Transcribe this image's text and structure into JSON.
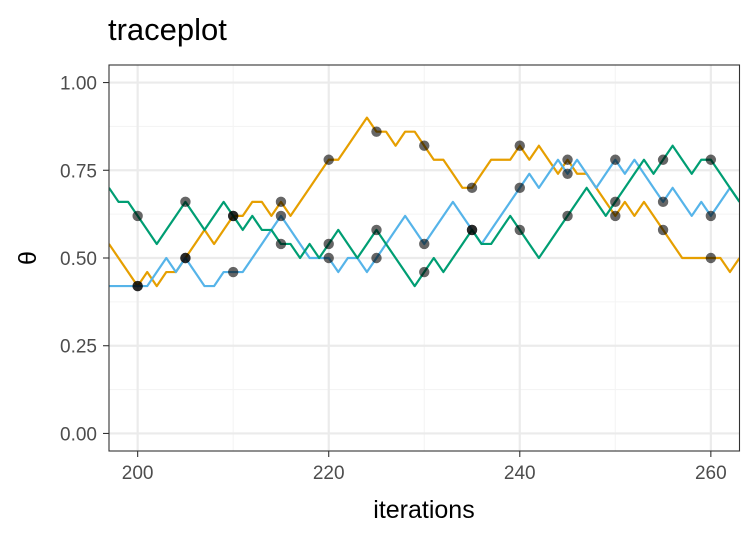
{
  "chart_data": {
    "type": "line",
    "title": "traceplot",
    "xlabel": "iterations",
    "ylabel": "θ",
    "xlim": [
      197,
      263
    ],
    "ylim": [
      -0.05,
      1.05
    ],
    "x_ticks": [
      200,
      220,
      240,
      260
    ],
    "y_ticks": [
      0.0,
      0.25,
      0.5,
      0.75,
      1.0
    ],
    "x_tick_labels": [
      "200",
      "220",
      "240",
      "260"
    ],
    "y_tick_labels": [
      "0.00",
      "0.25",
      "0.50",
      "0.75",
      "1.00"
    ],
    "grid": true,
    "x_start": 197,
    "series": [
      {
        "color": "#E69F00",
        "values": [
          0.54,
          0.5,
          0.46,
          0.42,
          0.46,
          0.42,
          0.46,
          0.46,
          0.5,
          0.54,
          0.58,
          0.54,
          0.58,
          0.62,
          0.62,
          0.66,
          0.66,
          0.62,
          0.66,
          0.62,
          0.66,
          0.7,
          0.74,
          0.78,
          0.78,
          0.82,
          0.86,
          0.9,
          0.86,
          0.86,
          0.82,
          0.86,
          0.86,
          0.82,
          0.78,
          0.78,
          0.74,
          0.7,
          0.7,
          0.74,
          0.78,
          0.78,
          0.78,
          0.82,
          0.78,
          0.82,
          0.78,
          0.74,
          0.78,
          0.74,
          0.74,
          0.7,
          0.66,
          0.62,
          0.66,
          0.62,
          0.66,
          0.62,
          0.58,
          0.54,
          0.5,
          0.5,
          0.5,
          0.5,
          0.5,
          0.46,
          0.5
        ]
      },
      {
        "color": "#56B4E9",
        "values": [
          0.42,
          0.42,
          0.42,
          0.42,
          0.42,
          0.46,
          0.5,
          0.46,
          0.5,
          0.46,
          0.42,
          0.42,
          0.46,
          0.46,
          0.46,
          0.5,
          0.54,
          0.58,
          0.62,
          0.58,
          0.54,
          0.5,
          0.5,
          0.5,
          0.46,
          0.5,
          0.5,
          0.46,
          0.5,
          0.54,
          0.58,
          0.62,
          0.58,
          0.54,
          0.58,
          0.62,
          0.66,
          0.62,
          0.58,
          0.54,
          0.58,
          0.62,
          0.66,
          0.7,
          0.74,
          0.7,
          0.74,
          0.78,
          0.74,
          0.78,
          0.74,
          0.7,
          0.74,
          0.78,
          0.74,
          0.78,
          0.74,
          0.7,
          0.66,
          0.7,
          0.66,
          0.62,
          0.66,
          0.62,
          0.66,
          0.7,
          0.66
        ]
      },
      {
        "color": "#009E73",
        "values": [
          0.7,
          0.66,
          0.66,
          0.62,
          0.58,
          0.54,
          0.58,
          0.62,
          0.66,
          0.62,
          0.58,
          0.62,
          0.66,
          0.62,
          0.58,
          0.62,
          0.58,
          0.58,
          0.54,
          0.54,
          0.5,
          0.54,
          0.5,
          0.54,
          0.58,
          0.54,
          0.5,
          0.54,
          0.58,
          0.54,
          0.5,
          0.46,
          0.42,
          0.46,
          0.5,
          0.46,
          0.5,
          0.54,
          0.58,
          0.54,
          0.54,
          0.58,
          0.62,
          0.58,
          0.54,
          0.5,
          0.54,
          0.58,
          0.62,
          0.66,
          0.7,
          0.66,
          0.62,
          0.66,
          0.7,
          0.74,
          0.78,
          0.74,
          0.78,
          0.82,
          0.78,
          0.74,
          0.78,
          0.78,
          0.74,
          0.7,
          0.66
        ]
      }
    ],
    "marked_iterations": [
      200,
      205,
      210,
      215,
      220,
      225,
      230,
      235,
      240,
      245,
      250,
      255,
      260
    ]
  }
}
